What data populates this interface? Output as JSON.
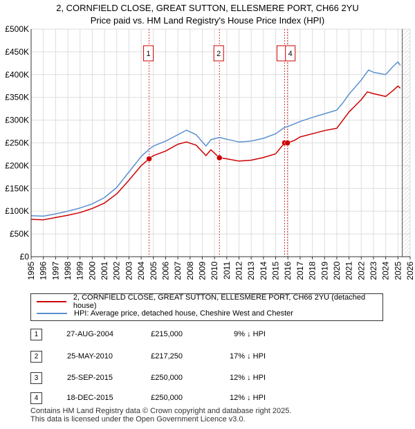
{
  "title_line1": "2, CORNFIELD CLOSE, GREAT SUTTON, ELLESMERE PORT, CH66 2YU",
  "title_line2": "Price paid vs. HM Land Registry's House Price Index (HPI)",
  "colors": {
    "property": "#cc0000",
    "hpi": "#5b8fd0",
    "sale_marker": "#cc0000",
    "vline": "#cc0000"
  },
  "chart_data": {
    "type": "line",
    "title": "Price paid vs. HM Land Registry's House Price Index (HPI)",
    "xlabel": "",
    "ylabel": "",
    "xlim": [
      1995,
      2026
    ],
    "ylim": [
      0,
      500000
    ],
    "y_ticks": [
      {
        "value": 0,
        "label": "£0"
      },
      {
        "value": 50000,
        "label": "£50K"
      },
      {
        "value": 100000,
        "label": "£100K"
      },
      {
        "value": 150000,
        "label": "£150K"
      },
      {
        "value": 200000,
        "label": "£200K"
      },
      {
        "value": 250000,
        "label": "£250K"
      },
      {
        "value": 300000,
        "label": "£300K"
      },
      {
        "value": 350000,
        "label": "£350K"
      },
      {
        "value": 400000,
        "label": "£400K"
      },
      {
        "value": 450000,
        "label": "£450K"
      },
      {
        "value": 500000,
        "label": "£500K"
      }
    ],
    "x_ticks": [
      "1995",
      "1996",
      "1997",
      "1998",
      "1999",
      "2000",
      "2001",
      "2002",
      "2003",
      "2004",
      "2005",
      "2006",
      "2007",
      "2008",
      "2009",
      "2010",
      "2011",
      "2012",
      "2013",
      "2014",
      "2015",
      "2016",
      "2017",
      "2018",
      "2019",
      "2020",
      "2021",
      "2022",
      "2023",
      "2024",
      "2025",
      "2026"
    ],
    "series": [
      {
        "name": "2, CORNFIELD CLOSE, GREAT SUTTON, ELLESMERE PORT, CH66 2YU (detached house)",
        "color_key": "property",
        "points": [
          [
            1995,
            82000
          ],
          [
            1996,
            81000
          ],
          [
            1997,
            86000
          ],
          [
            1998,
            91000
          ],
          [
            1999,
            97000
          ],
          [
            2000,
            106000
          ],
          [
            2001,
            118000
          ],
          [
            2002,
            138000
          ],
          [
            2003,
            168000
          ],
          [
            2004,
            200000
          ],
          [
            2004.65,
            215000
          ],
          [
            2005,
            222000
          ],
          [
            2006,
            232000
          ],
          [
            2007,
            247000
          ],
          [
            2007.7,
            252000
          ],
          [
            2008.5,
            245000
          ],
          [
            2009.3,
            222000
          ],
          [
            2009.7,
            235000
          ],
          [
            2010.4,
            217250
          ],
          [
            2011,
            215000
          ],
          [
            2012,
            210000
          ],
          [
            2013,
            212000
          ],
          [
            2014,
            218000
          ],
          [
            2015,
            226000
          ],
          [
            2015.73,
            250000
          ],
          [
            2015.97,
            250000
          ],
          [
            2016.5,
            255000
          ],
          [
            2017,
            263000
          ],
          [
            2018,
            270000
          ],
          [
            2019,
            277000
          ],
          [
            2020,
            282000
          ],
          [
            2020.5,
            300000
          ],
          [
            2021,
            318000
          ],
          [
            2022,
            345000
          ],
          [
            2022.5,
            362000
          ],
          [
            2023,
            358000
          ],
          [
            2024,
            352000
          ],
          [
            2024.6,
            365000
          ],
          [
            2025,
            375000
          ],
          [
            2025.2,
            370000
          ]
        ]
      },
      {
        "name": "HPI: Average price, detached house, Cheshire West and Chester",
        "color_key": "hpi",
        "points": [
          [
            1995,
            90000
          ],
          [
            1996,
            89000
          ],
          [
            1997,
            94000
          ],
          [
            1998,
            100000
          ],
          [
            1999,
            107000
          ],
          [
            2000,
            116000
          ],
          [
            2001,
            130000
          ],
          [
            2002,
            152000
          ],
          [
            2003,
            186000
          ],
          [
            2004,
            220000
          ],
          [
            2004.65,
            236000
          ],
          [
            2005,
            243000
          ],
          [
            2006,
            254000
          ],
          [
            2007,
            268000
          ],
          [
            2007.7,
            278000
          ],
          [
            2008.5,
            268000
          ],
          [
            2009.3,
            243000
          ],
          [
            2009.7,
            257000
          ],
          [
            2010.4,
            262000
          ],
          [
            2011,
            258000
          ],
          [
            2012,
            252000
          ],
          [
            2013,
            254000
          ],
          [
            2014,
            260000
          ],
          [
            2015,
            270000
          ],
          [
            2015.73,
            284000
          ],
          [
            2016,
            286000
          ],
          [
            2017,
            297000
          ],
          [
            2018,
            306000
          ],
          [
            2019,
            314000
          ],
          [
            2020,
            322000
          ],
          [
            2020.5,
            338000
          ],
          [
            2021,
            357000
          ],
          [
            2022,
            388000
          ],
          [
            2022.6,
            410000
          ],
          [
            2023,
            405000
          ],
          [
            2024,
            400000
          ],
          [
            2024.6,
            418000
          ],
          [
            2025,
            428000
          ],
          [
            2025.2,
            420000
          ]
        ]
      }
    ],
    "sales": [
      {
        "label": "1",
        "x": 2004.65,
        "y": 215000
      },
      {
        "label": "2",
        "x": 2010.4,
        "y": 217250
      },
      {
        "label": "3",
        "x": 2015.73,
        "y": 250000
      },
      {
        "label": "4",
        "x": 2015.97,
        "y": 250000
      }
    ]
  },
  "legend": {
    "property_label": "2, CORNFIELD CLOSE, GREAT SUTTON, ELLESMERE PORT, CH66 2YU (detached house)",
    "hpi_label": "HPI: Average price, detached house, Cheshire West and Chester"
  },
  "sales_table": [
    {
      "num": "1",
      "date": "27-AUG-2004",
      "price": "£215,000",
      "hpi": "9% ↓ HPI"
    },
    {
      "num": "2",
      "date": "25-MAY-2010",
      "price": "£217,250",
      "hpi": "17% ↓ HPI"
    },
    {
      "num": "3",
      "date": "25-SEP-2015",
      "price": "£250,000",
      "hpi": "12% ↓ HPI"
    },
    {
      "num": "4",
      "date": "18-DEC-2015",
      "price": "£250,000",
      "hpi": "12% ↓ HPI"
    }
  ],
  "footer_line1": "Contains HM Land Registry data © Crown copyright and database right 2025.",
  "footer_line2": "This data is licensed under the Open Government Licence v3.0."
}
